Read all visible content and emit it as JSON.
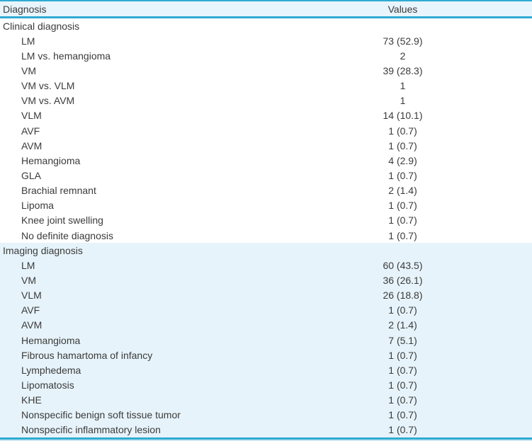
{
  "table": {
    "header": {
      "diagnosis": "Diagnosis",
      "values": "Values"
    },
    "sections": [
      {
        "title": "Clinical diagnosis",
        "highlight": false,
        "rows": [
          {
            "label": "LM",
            "value": "73 (52.9)"
          },
          {
            "label": "LM vs. hemangioma",
            "value": "2"
          },
          {
            "label": "VM",
            "value": "39 (28.3)"
          },
          {
            "label": "VM vs. VLM",
            "value": "1"
          },
          {
            "label": "VM vs. AVM",
            "value": "1"
          },
          {
            "label": "VLM",
            "value": "14 (10.1)"
          },
          {
            "label": "AVF",
            "value": "1 (0.7)"
          },
          {
            "label": "AVM",
            "value": "1 (0.7)"
          },
          {
            "label": "Hemangioma",
            "value": "4 (2.9)"
          },
          {
            "label": "GLA",
            "value": "1 (0.7)"
          },
          {
            "label": "Brachial remnant",
            "value": "2 (1.4)"
          },
          {
            "label": "Lipoma",
            "value": "1 (0.7)"
          },
          {
            "label": "Knee joint swelling",
            "value": "1 (0.7)"
          },
          {
            "label": "No definite diagnosis",
            "value": "1 (0.7)"
          }
        ]
      },
      {
        "title": "Imaging diagnosis",
        "highlight": true,
        "rows": [
          {
            "label": "LM",
            "value": "60 (43.5)"
          },
          {
            "label": "VM",
            "value": "36 (26.1)"
          },
          {
            "label": "VLM",
            "value": "26 (18.8)"
          },
          {
            "label": "AVF",
            "value": "1 (0.7)"
          },
          {
            "label": "AVM",
            "value": "2 (1.4)"
          },
          {
            "label": "Hemangioma",
            "value": "7 (5.1)"
          },
          {
            "label": "Fibrous hamartoma of infancy",
            "value": "1 (0.7)"
          },
          {
            "label": "Lymphedema",
            "value": "1 (0.7)"
          },
          {
            "label": "Lipomatosis",
            "value": "1 (0.7)"
          },
          {
            "label": "KHE",
            "value": "1 (0.7)"
          },
          {
            "label": "Nonspecific benign soft tissue tumor",
            "value": "1 (0.7)"
          },
          {
            "label": "Nonspecific inflammatory lesion",
            "value": "1 (0.7)"
          }
        ]
      }
    ]
  },
  "colors": {
    "accent_border": "#2fabd1",
    "header_background": "#e9f5fc",
    "section_highlight_background": "#e6f3fa",
    "text": "#3b3b3b"
  }
}
